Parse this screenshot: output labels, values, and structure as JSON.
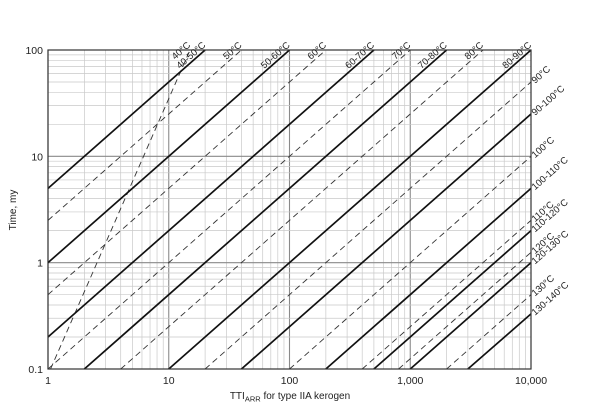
{
  "chart_data": {
    "type": "line",
    "title": "",
    "xlabel": "TTI",
    "xlabel_sub": "ARR",
    "xlabel_suffix": " for type IIA kerogen",
    "ylabel": "Time, my",
    "x_scale": "log",
    "y_scale": "log",
    "xlim": [
      1,
      10000
    ],
    "ylim": [
      0.1,
      100
    ],
    "x_ticks": [
      1,
      10,
      100,
      1000,
      10000
    ],
    "x_tick_labels": [
      "1",
      "10",
      "100",
      "1,000",
      "10,000"
    ],
    "y_ticks": [
      0.1,
      1,
      10,
      100
    ],
    "y_tick_labels": [
      "0.1",
      "1",
      "10",
      "100"
    ],
    "grid": true,
    "series": [
      {
        "name": "40°C",
        "style": "dashed",
        "x": [
          1.05,
          15
        ],
        "y": [
          0.1,
          100
        ]
      },
      {
        "name": "40-50°C",
        "style": "solid",
        "x": [
          1,
          20
        ],
        "y": [
          5,
          100
        ]
      },
      {
        "name": "50°C",
        "style": "dashed",
        "x": [
          1,
          40
        ],
        "y": [
          2.5,
          100
        ]
      },
      {
        "name": "50-60°C",
        "style": "solid",
        "x": [
          1,
          100
        ],
        "y": [
          1,
          100
        ]
      },
      {
        "name": "60°C",
        "style": "dashed",
        "x": [
          1,
          200
        ],
        "y": [
          0.5,
          100
        ]
      },
      {
        "name": "60-70°C",
        "style": "solid",
        "x": [
          1,
          500
        ],
        "y": [
          0.2,
          100
        ]
      },
      {
        "name": "70°C",
        "style": "dashed",
        "x": [
          1,
          1000
        ],
        "y": [
          0.1,
          100
        ]
      },
      {
        "name": "70-80°C",
        "style": "solid",
        "x": [
          2,
          2000
        ],
        "y": [
          0.1,
          100
        ]
      },
      {
        "name": "80°C",
        "style": "dashed",
        "x": [
          4,
          4000
        ],
        "y": [
          0.1,
          100
        ]
      },
      {
        "name": "80-90°C",
        "style": "solid",
        "x": [
          10,
          10000
        ],
        "y": [
          0.1,
          100
        ]
      },
      {
        "name": "90°C",
        "style": "dashed",
        "x": [
          20,
          10000
        ],
        "y": [
          0.1,
          50
        ]
      },
      {
        "name": "90-100°C",
        "style": "solid",
        "x": [
          40,
          10000
        ],
        "y": [
          0.1,
          25
        ]
      },
      {
        "name": "100°C",
        "style": "dashed",
        "x": [
          100,
          10000
        ],
        "y": [
          0.1,
          10
        ]
      },
      {
        "name": "100-110°C",
        "style": "solid",
        "x": [
          200,
          10000
        ],
        "y": [
          0.1,
          5
        ]
      },
      {
        "name": "110°C",
        "style": "dashed",
        "x": [
          400,
          10000
        ],
        "y": [
          0.1,
          2.5
        ]
      },
      {
        "name": "110-120°C",
        "style": "solid",
        "x": [
          500,
          10000
        ],
        "y": [
          0.1,
          2
        ]
      },
      {
        "name": "120°C",
        "style": "dashed",
        "x": [
          800,
          10000
        ],
        "y": [
          0.1,
          1.25
        ]
      },
      {
        "name": "120-130°C",
        "style": "solid",
        "x": [
          1000,
          10000
        ],
        "y": [
          0.1,
          1
        ]
      },
      {
        "name": "130°C",
        "style": "dashed",
        "x": [
          2000,
          10000
        ],
        "y": [
          0.1,
          0.5
        ]
      },
      {
        "name": "130-140°C",
        "style": "solid",
        "x": [
          3000,
          10000
        ],
        "y": [
          0.1,
          0.33
        ]
      }
    ]
  }
}
